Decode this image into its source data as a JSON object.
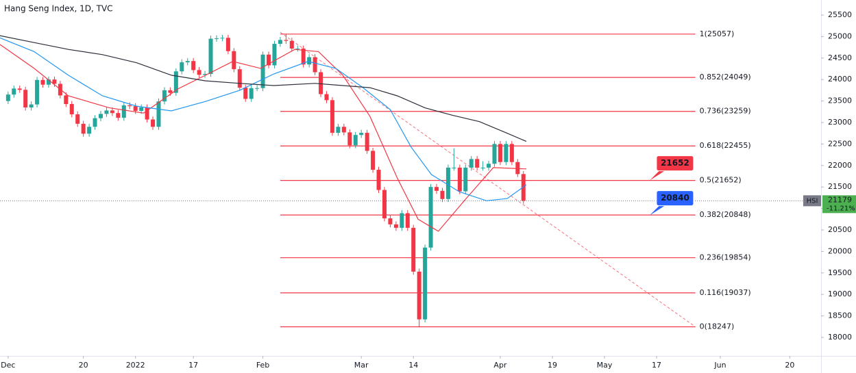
{
  "chart_data": {
    "type": "candlestick",
    "title": "Hang Seng Index, 1D, TVC",
    "xlim": [
      -1.4,
      140.4
    ],
    "ylim": [
      17570,
      25850
    ],
    "yticks": [
      18000,
      18500,
      19000,
      19500,
      20000,
      20500,
      21000,
      21500,
      22000,
      22500,
      23000,
      23500,
      24000,
      24500,
      25000,
      25500
    ],
    "xticks": [
      {
        "value": 0,
        "label": "Dec"
      },
      {
        "value": 13,
        "label": "20"
      },
      {
        "value": 22,
        "label": "2022"
      },
      {
        "value": 32,
        "label": "17"
      },
      {
        "value": 44,
        "label": "Feb"
      },
      {
        "value": 61,
        "label": "Mar"
      },
      {
        "value": 70,
        "label": "14"
      },
      {
        "value": 85,
        "label": "Apr"
      },
      {
        "value": 94,
        "label": "19"
      },
      {
        "value": 103,
        "label": "May"
      },
      {
        "value": 112,
        "label": "17"
      },
      {
        "value": 123,
        "label": "Jun"
      },
      {
        "value": 135,
        "label": "20"
      }
    ],
    "grid": false,
    "up_color": "#26a69a",
    "down_color": "#f23645",
    "x": [
      0,
      1,
      2,
      3,
      4,
      5,
      6,
      7,
      8,
      9,
      10,
      11,
      12,
      13,
      14,
      15,
      16,
      17,
      18,
      19,
      20,
      21,
      22,
      23,
      24,
      25,
      26,
      27,
      28,
      29,
      30,
      31,
      32,
      33,
      34,
      35,
      36,
      37,
      38,
      39,
      40,
      41,
      42,
      43,
      44,
      45,
      46,
      47,
      48,
      49,
      50,
      51,
      52,
      53,
      54,
      55,
      56,
      57,
      58,
      59,
      60,
      61,
      62,
      63,
      64,
      65,
      66,
      67,
      68,
      69,
      70,
      71,
      72,
      73,
      74,
      75,
      76,
      77,
      78,
      79,
      80,
      81,
      82,
      83,
      84,
      85,
      86,
      87,
      88,
      89
    ],
    "ohlc": [
      [
        23500,
        23720,
        23430,
        23650
      ],
      [
        23650,
        23860,
        23580,
        23790
      ],
      [
        23790,
        23860,
        23690,
        23760
      ],
      [
        23760,
        23830,
        23280,
        23350
      ],
      [
        23350,
        23490,
        23280,
        23420
      ],
      [
        23420,
        24060,
        23350,
        23990
      ],
      [
        23990,
        24060,
        23810,
        23880
      ],
      [
        23880,
        24070,
        23810,
        24000
      ],
      [
        24000,
        24070,
        23830,
        23900
      ],
      [
        23900,
        23970,
        23560,
        23630
      ],
      [
        23630,
        23700,
        23360,
        23430
      ],
      [
        23430,
        23500,
        23120,
        23190
      ],
      [
        23190,
        23260,
        22900,
        22970
      ],
      [
        22970,
        23040,
        22670,
        22740
      ],
      [
        22740,
        22970,
        22670,
        22900
      ],
      [
        22900,
        23170,
        22830,
        23100
      ],
      [
        23100,
        23270,
        23030,
        23200
      ],
      [
        23200,
        23350,
        23130,
        23280
      ],
      [
        23280,
        23350,
        23150,
        23220
      ],
      [
        23220,
        23290,
        23040,
        23110
      ],
      [
        23110,
        23470,
        23040,
        23400
      ],
      [
        23400,
        23470,
        23310,
        23380
      ],
      [
        23380,
        23450,
        23200,
        23270
      ],
      [
        23270,
        23420,
        23200,
        23350
      ],
      [
        23350,
        23420,
        23000,
        23070
      ],
      [
        23070,
        23140,
        22830,
        22900
      ],
      [
        22900,
        23560,
        22830,
        23490
      ],
      [
        23490,
        23820,
        23420,
        23750
      ],
      [
        23750,
        23820,
        23620,
        23690
      ],
      [
        23690,
        24260,
        23620,
        24190
      ],
      [
        24190,
        24470,
        24120,
        24400
      ],
      [
        24400,
        24500,
        24330,
        24430
      ],
      [
        24430,
        24500,
        24150,
        24220
      ],
      [
        24220,
        24290,
        24040,
        24110
      ],
      [
        24110,
        24200,
        24040,
        24130
      ],
      [
        24130,
        25020,
        24060,
        24950
      ],
      [
        24950,
        25030,
        24880,
        24960
      ],
      [
        24960,
        25040,
        24890,
        24970
      ],
      [
        24970,
        25040,
        24590,
        24660
      ],
      [
        24660,
        24730,
        24170,
        24240
      ],
      [
        24240,
        24310,
        23740,
        23810
      ],
      [
        23810,
        23880,
        23480,
        23550
      ],
      [
        23550,
        23870,
        23480,
        23800
      ],
      [
        23800,
        23870,
        23730,
        23800
      ],
      [
        23800,
        24650,
        23730,
        24580
      ],
      [
        24580,
        24650,
        24260,
        24330
      ],
      [
        24330,
        24900,
        24260,
        24830
      ],
      [
        24830,
        24990,
        24760,
        24920
      ],
      [
        24920,
        25060,
        24830,
        24900
      ],
      [
        24900,
        24970,
        24650,
        24720
      ],
      [
        24720,
        24790,
        24650,
        24720
      ],
      [
        24720,
        24790,
        24280,
        24350
      ],
      [
        24350,
        24590,
        24280,
        24520
      ],
      [
        24520,
        24590,
        24100,
        24170
      ],
      [
        24170,
        24240,
        23590,
        23660
      ],
      [
        23660,
        23730,
        23450,
        23520
      ],
      [
        23520,
        23590,
        22690,
        22760
      ],
      [
        22760,
        22970,
        22690,
        22900
      ],
      [
        22900,
        22970,
        22700,
        22770
      ],
      [
        22770,
        22840,
        22400,
        22470
      ],
      [
        22470,
        22780,
        22400,
        22710
      ],
      [
        22710,
        22830,
        22640,
        22760
      ],
      [
        22760,
        22830,
        22270,
        22340
      ],
      [
        22340,
        22410,
        21830,
        21900
      ],
      [
        21900,
        21970,
        21360,
        21430
      ],
      [
        21430,
        21500,
        20700,
        20770
      ],
      [
        20770,
        20840,
        20560,
        20630
      ],
      [
        20630,
        20700,
        20480,
        20550
      ],
      [
        20550,
        20960,
        20480,
        20890
      ],
      [
        20890,
        20960,
        20480,
        20550
      ],
      [
        20550,
        20620,
        19460,
        19530
      ],
      [
        19530,
        19600,
        18235,
        18420
      ],
      [
        18420,
        20160,
        18350,
        20090
      ],
      [
        20090,
        21570,
        20020,
        21500
      ],
      [
        21500,
        21570,
        21340,
        21410
      ],
      [
        21410,
        21480,
        21150,
        21220
      ],
      [
        21220,
        22020,
        21150,
        21950
      ],
      [
        21950,
        22400,
        21880,
        21950
      ],
      [
        21950,
        22020,
        21330,
        21400
      ],
      [
        21400,
        22020,
        21330,
        21950
      ],
      [
        21950,
        22220,
        21880,
        22150
      ],
      [
        22150,
        22220,
        21880,
        21950
      ],
      [
        21950,
        22100,
        21880,
        21950
      ],
      [
        21950,
        22110,
        21880,
        22040
      ],
      [
        22040,
        22570,
        21970,
        22500
      ],
      [
        22500,
        22570,
        22010,
        22080
      ],
      [
        22080,
        22570,
        22010,
        22500
      ],
      [
        22500,
        22570,
        22010,
        22080
      ],
      [
        22080,
        22150,
        21730,
        21800
      ],
      [
        21800,
        21870,
        21110,
        21179
      ]
    ],
    "lines": [
      {
        "color": "#f23645",
        "x": [
          -1.4,
          4.5,
          10.4,
          17.5,
          23.4,
          29.3,
          34.1,
          38.8,
          43.6,
          49.5,
          53.6,
          57.8,
          62.5,
          67.2,
          70.8,
          74.3,
          79.1,
          83.8,
          89.5
        ],
        "values": [
          24815,
          24260,
          23620,
          23340,
          23220,
          23780,
          24100,
          24420,
          24260,
          24700,
          24650,
          24100,
          23140,
          21710,
          20750,
          20470,
          21230,
          21950,
          21920
        ]
      },
      {
        "color": "#2196f3",
        "x": [
          -1.4,
          4.5,
          10.4,
          16.3,
          22.2,
          28.2,
          34.1,
          40,
          45.9,
          51.8,
          56.6,
          61.3,
          66,
          69.6,
          73.1,
          77.9,
          82.6,
          86.2,
          89.5
        ],
        "values": [
          24970,
          24650,
          24100,
          23620,
          23380,
          23270,
          23490,
          23750,
          24130,
          24420,
          24260,
          23810,
          23300,
          22430,
          21790,
          21390,
          21180,
          21230,
          21550
        ]
      },
      {
        "color": "#2a2e39",
        "x": [
          -1.4,
          4.5,
          10.4,
          16.3,
          22.2,
          28.2,
          34.1,
          40,
          45.9,
          53,
          57.8,
          62.5,
          67.2,
          72,
          76.7,
          81.4,
          86.2,
          89.5
        ],
        "values": [
          25020,
          24860,
          24700,
          24580,
          24390,
          24100,
          23970,
          23910,
          23860,
          23910,
          23860,
          23810,
          23620,
          23340,
          23170,
          23020,
          22750,
          22560
        ]
      }
    ],
    "fib_color": "#f23645",
    "fib_x": [
      47,
      118.7
    ],
    "fib_levels": [
      {
        "value": 25057,
        "label": "1(25057)"
      },
      {
        "value": 24049,
        "label": "0.852(24049)"
      },
      {
        "value": 23259,
        "label": "0.736(23259)"
      },
      {
        "value": 22455,
        "label": "0.618(22455)"
      },
      {
        "value": 21652,
        "label": "0.5(21652)"
      },
      {
        "value": 20848,
        "label": "0.382(20848)"
      },
      {
        "value": 19854,
        "label": "0.236(19854)"
      },
      {
        "value": 19037,
        "label": "0.116(19037)"
      },
      {
        "value": 18247,
        "label": "0(18247)"
      }
    ],
    "trendline": {
      "x": [
        47,
        118.7
      ],
      "values": [
        25100,
        18247
      ]
    },
    "callouts": [
      {
        "x": 110.8,
        "value": 21652,
        "color": "#f23645"
      },
      {
        "x": 110.8,
        "value": 20840,
        "color": "#2962ff"
      }
    ],
    "last_price": {
      "symbol": "HSI",
      "value": 21179,
      "change": "-11.21%",
      "color": "#4caf50"
    }
  }
}
